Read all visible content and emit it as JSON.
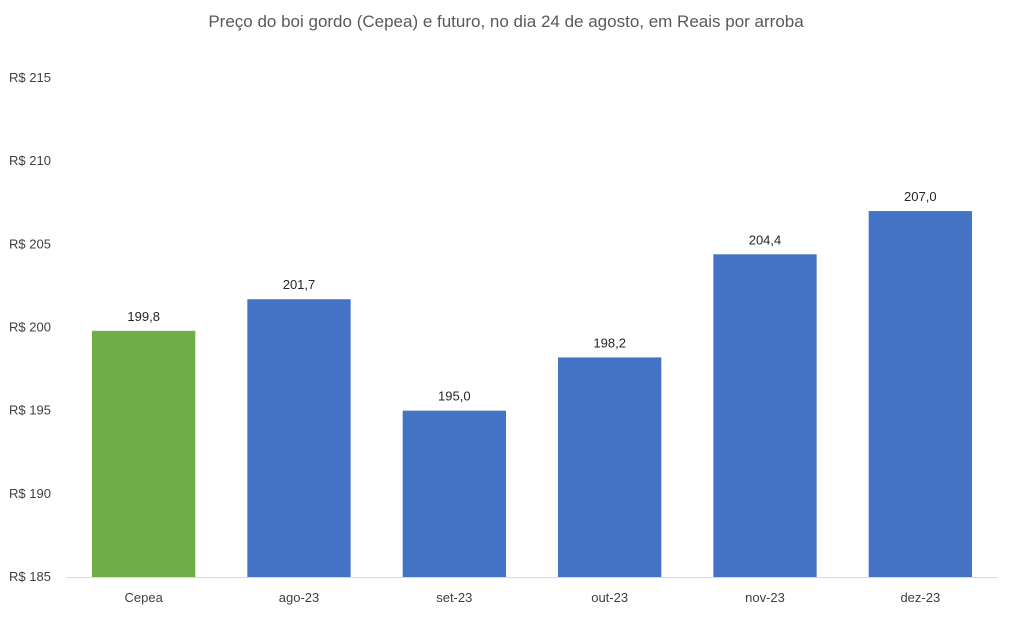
{
  "chart_data": {
    "type": "bar",
    "title": "Preço do boi gordo (Cepea) e futuro, no dia 24 de agosto, em Reais por arroba",
    "xlabel": "",
    "ylabel": "",
    "categories": [
      "Cepea",
      "ago-23",
      "set-23",
      "out-23",
      "nov-23",
      "dez-23"
    ],
    "values": [
      199.8,
      201.7,
      195.0,
      198.2,
      204.4,
      207.0
    ],
    "data_labels": [
      "199,8",
      "201,7",
      "195,0",
      "198,2",
      "204,4",
      "207,0"
    ],
    "ylim": [
      185,
      215
    ],
    "yticks": [
      185,
      190,
      195,
      200,
      205,
      210,
      215
    ],
    "ytick_labels": [
      "R$ 185",
      "R$ 190",
      "R$ 195",
      "R$ 200",
      "R$ 205",
      "R$ 210",
      "R$ 215"
    ],
    "bar_colors": [
      "#70AD47",
      "#4472C4",
      "#4472C4",
      "#4472C4",
      "#4472C4",
      "#4472C4"
    ],
    "grid": false,
    "legend": "none"
  }
}
